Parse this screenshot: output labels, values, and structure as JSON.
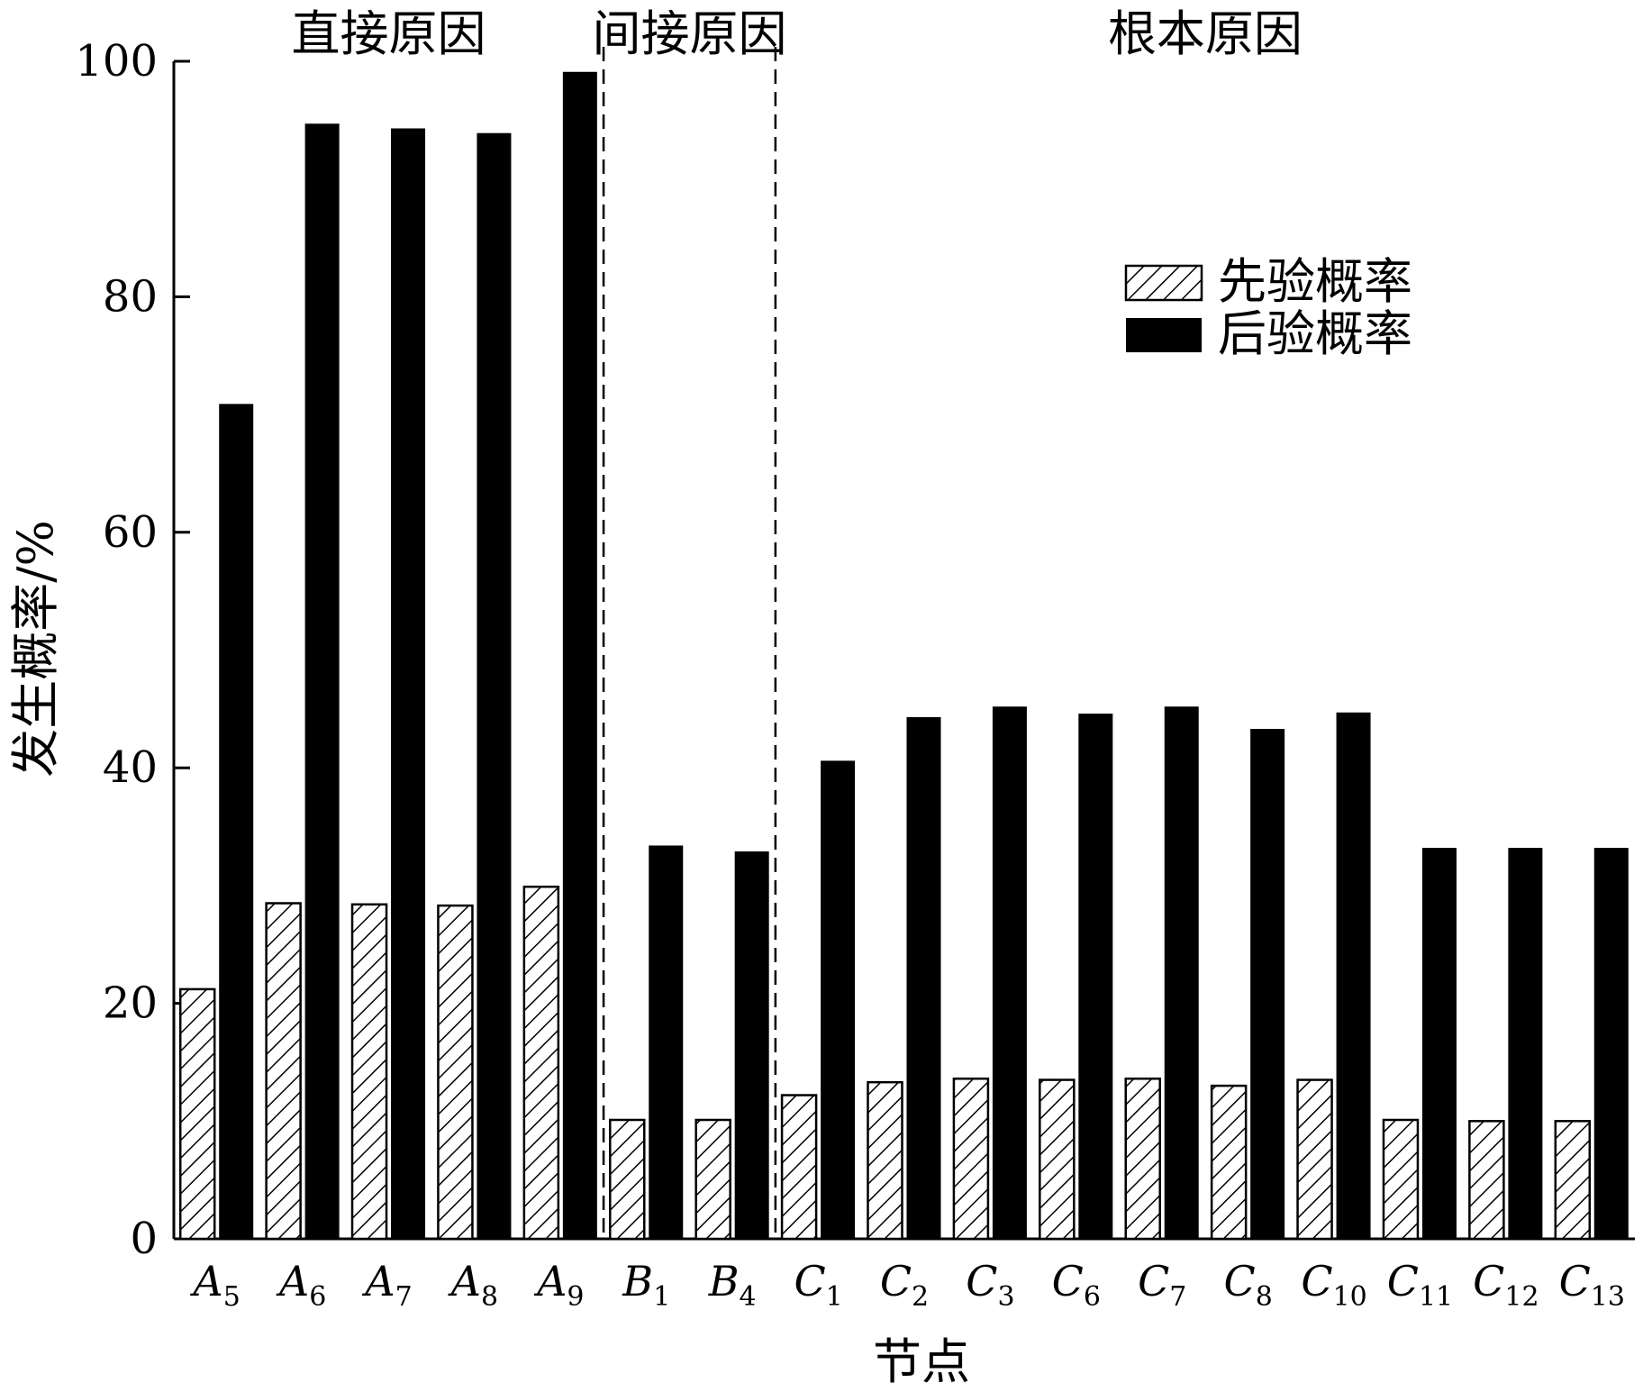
{
  "chart_data": {
    "type": "bar",
    "xlabel": "节点",
    "ylabel": "发生概率/%",
    "ylim": [
      0,
      100
    ],
    "yticks": [
      0,
      20,
      40,
      60,
      80,
      100
    ],
    "categories": [
      {
        "main": "A",
        "sub": "5"
      },
      {
        "main": "A",
        "sub": "6"
      },
      {
        "main": "A",
        "sub": "7"
      },
      {
        "main": "A",
        "sub": "8"
      },
      {
        "main": "A",
        "sub": "9"
      },
      {
        "main": "B",
        "sub": "1"
      },
      {
        "main": "B",
        "sub": "4"
      },
      {
        "main": "C",
        "sub": "1"
      },
      {
        "main": "C",
        "sub": "2"
      },
      {
        "main": "C",
        "sub": "3"
      },
      {
        "main": "C",
        "sub": "6"
      },
      {
        "main": "C",
        "sub": "7"
      },
      {
        "main": "C",
        "sub": "8"
      },
      {
        "main": "C",
        "sub": "10"
      },
      {
        "main": "C",
        "sub": "11"
      },
      {
        "main": "C",
        "sub": "12"
      },
      {
        "main": "C",
        "sub": "13"
      }
    ],
    "series": [
      {
        "name": "先验概率",
        "pattern": "hatch",
        "values": [
          21.2,
          28.5,
          28.4,
          28.3,
          29.9,
          10.1,
          10.1,
          12.2,
          13.3,
          13.6,
          13.5,
          13.6,
          13.0,
          13.5,
          10.1,
          10.0,
          10.0
        ]
      },
      {
        "name": "后验概率",
        "pattern": "solid",
        "values": [
          70.9,
          94.7,
          94.3,
          93.9,
          99.1,
          33.4,
          32.9,
          40.6,
          44.3,
          45.2,
          44.6,
          45.2,
          43.3,
          44.7,
          33.2,
          33.2,
          33.2
        ]
      }
    ],
    "groups": [
      {
        "label": "直接原因",
        "start": 0,
        "end": 4
      },
      {
        "label": "间接原因",
        "start": 5,
        "end": 6
      },
      {
        "label": "根本原因",
        "start": 7,
        "end": 16
      }
    ],
    "legend_position": "top-right",
    "colors": {
      "bar": "#000000",
      "hatch_fill": "#ffffff",
      "background": "#ffffff"
    }
  }
}
